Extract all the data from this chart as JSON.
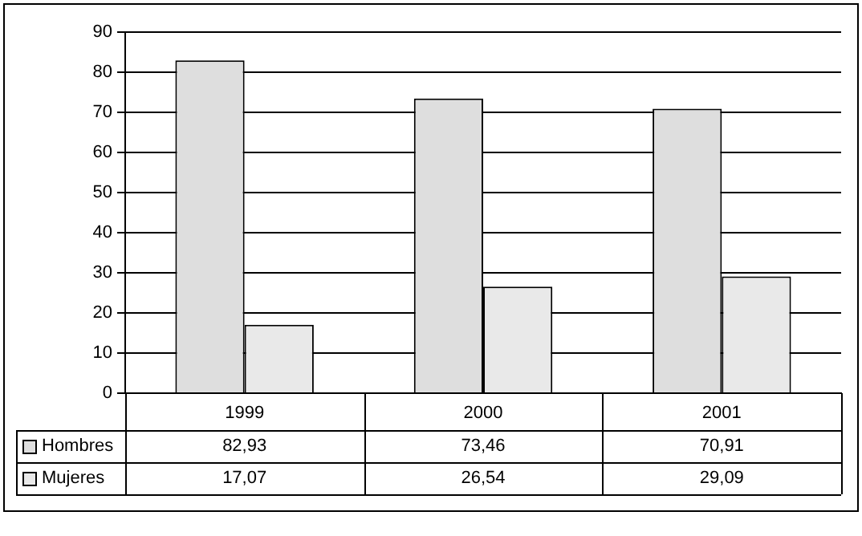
{
  "chart_data": {
    "type": "bar",
    "categories": [
      "1999",
      "2000",
      "2001"
    ],
    "series": [
      {
        "name": "Hombres",
        "color": "#dedede",
        "values": [
          82.93,
          73.46,
          70.91
        ],
        "value_labels": [
          "82,93",
          "73,46",
          "70,91"
        ]
      },
      {
        "name": "Mujeres",
        "color": "#e9e9e9",
        "values": [
          17.07,
          26.54,
          29.09
        ],
        "value_labels": [
          "17,07",
          "26,54",
          "29,09"
        ]
      }
    ],
    "ylim": [
      0,
      90
    ],
    "yticks": [
      0,
      10,
      20,
      30,
      40,
      50,
      60,
      70,
      80,
      90
    ],
    "grid": "y",
    "legend": "bottom"
  }
}
